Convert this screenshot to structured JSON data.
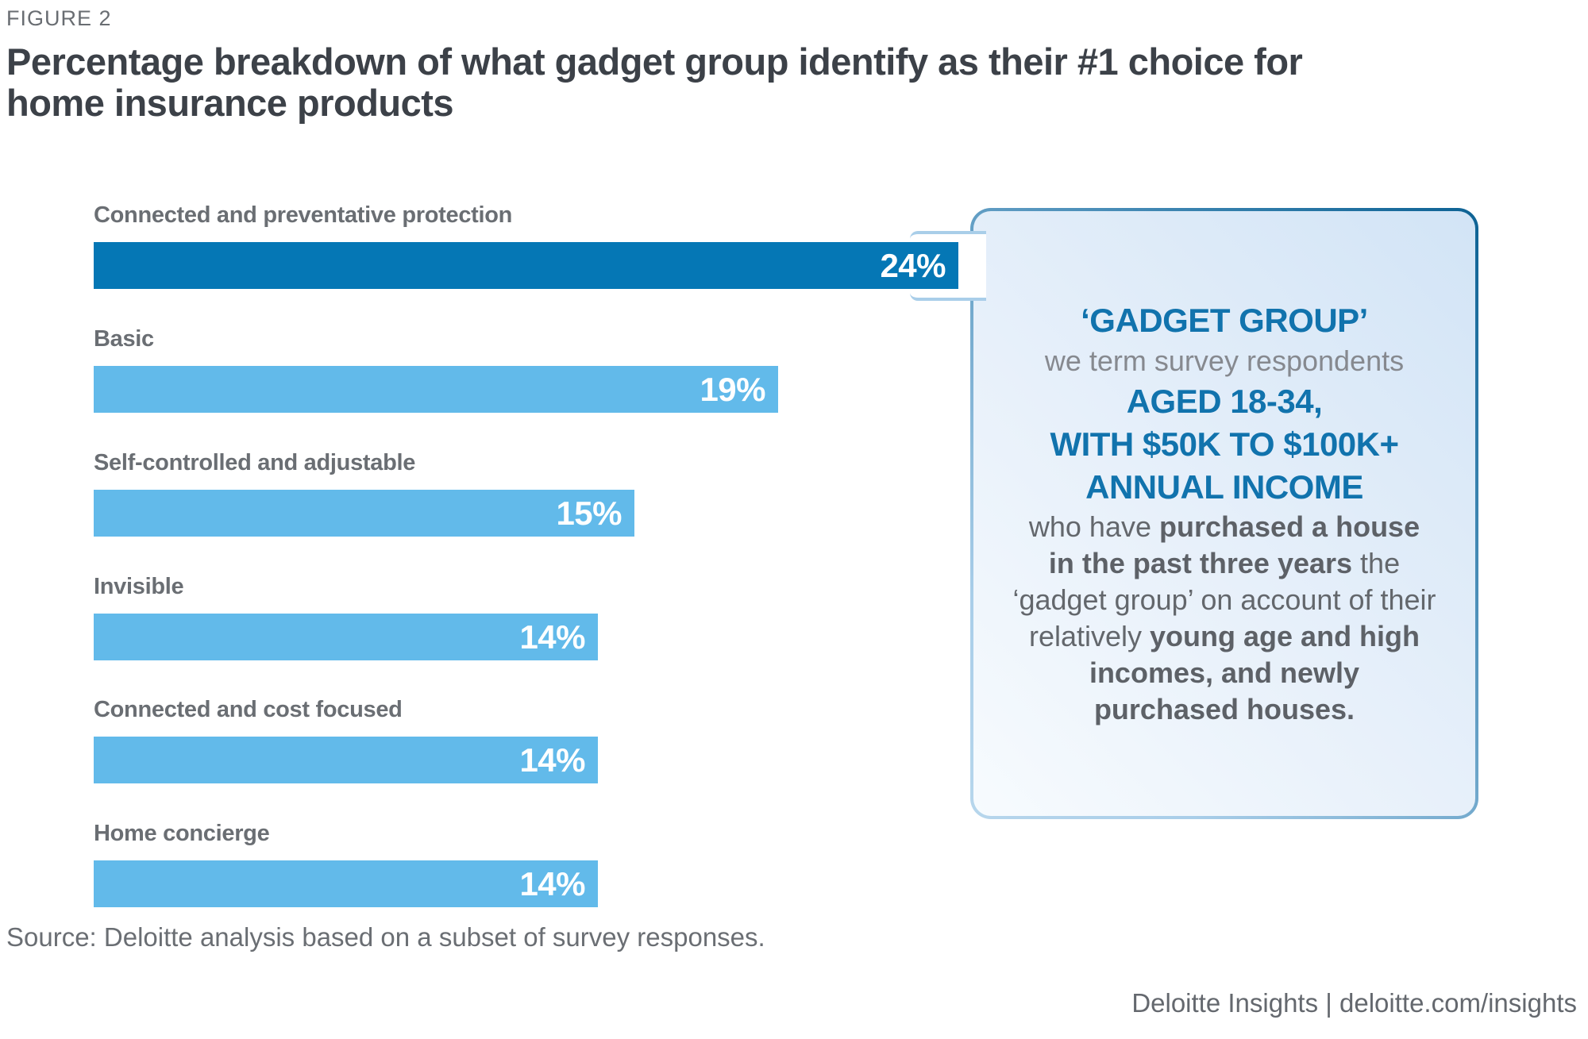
{
  "figure_label": "FIGURE 2",
  "title": {
    "line1": "Percentage breakdown of what gadget group identify as their #1 choice for",
    "line2": "home insurance products"
  },
  "chart_data": {
    "type": "bar",
    "orientation": "horizontal",
    "categories": [
      "Connected and preventative protection",
      "Basic",
      "Self-controlled and adjustable",
      "Invisible",
      "Connected and cost focused",
      "Home concierge"
    ],
    "values": [
      24,
      19,
      15,
      14,
      14,
      14
    ],
    "value_labels": [
      "24%",
      "19%",
      "15%",
      "14%",
      "14%",
      "14%"
    ],
    "unit": "%",
    "xlim": [
      0,
      24
    ],
    "grid": false,
    "colors": {
      "highlight_bar": "#0577B5",
      "default_bar": "#62BAEA",
      "value_text": "#ffffff",
      "label_text": "#6A6E73"
    }
  },
  "callout": {
    "accent_color": "#1173AD",
    "lines": [
      {
        "variant": "blue",
        "segments": [
          {
            "text": "‘GADGET GROUP’",
            "bold": true
          }
        ]
      },
      {
        "variant": "gray-light",
        "segments": [
          {
            "text": "we term survey respondents",
            "bold": false
          }
        ]
      },
      {
        "variant": "blue",
        "segments": [
          {
            "text": "AGED 18-34,",
            "bold": true
          }
        ]
      },
      {
        "variant": "blue",
        "segments": [
          {
            "text": "WITH $50K TO $100K+",
            "bold": true
          }
        ]
      },
      {
        "variant": "blue",
        "segments": [
          {
            "text": "ANNUAL INCOME",
            "bold": true
          }
        ]
      },
      {
        "variant": "gray",
        "segments": [
          {
            "text": "who have ",
            "bold": false
          },
          {
            "text": "purchased a house",
            "bold": true
          }
        ]
      },
      {
        "variant": "gray",
        "segments": [
          {
            "text": "in the past three years",
            "bold": true
          },
          {
            "text": " the",
            "bold": false
          }
        ]
      },
      {
        "variant": "gray",
        "segments": [
          {
            "text": "‘gadget group’ on account of their",
            "bold": false
          }
        ]
      },
      {
        "variant": "gray",
        "segments": [
          {
            "text": "relatively ",
            "bold": false
          },
          {
            "text": "young age and high",
            "bold": true
          }
        ]
      },
      {
        "variant": "gray",
        "segments": [
          {
            "text": "incomes, and newly",
            "bold": true
          }
        ]
      },
      {
        "variant": "gray",
        "segments": [
          {
            "text": "purchased houses.",
            "bold": true
          }
        ]
      }
    ]
  },
  "source": "Source: Deloitte analysis based on a subset of survey responses.",
  "footer": "Deloitte Insights | deloitte.com/insights"
}
